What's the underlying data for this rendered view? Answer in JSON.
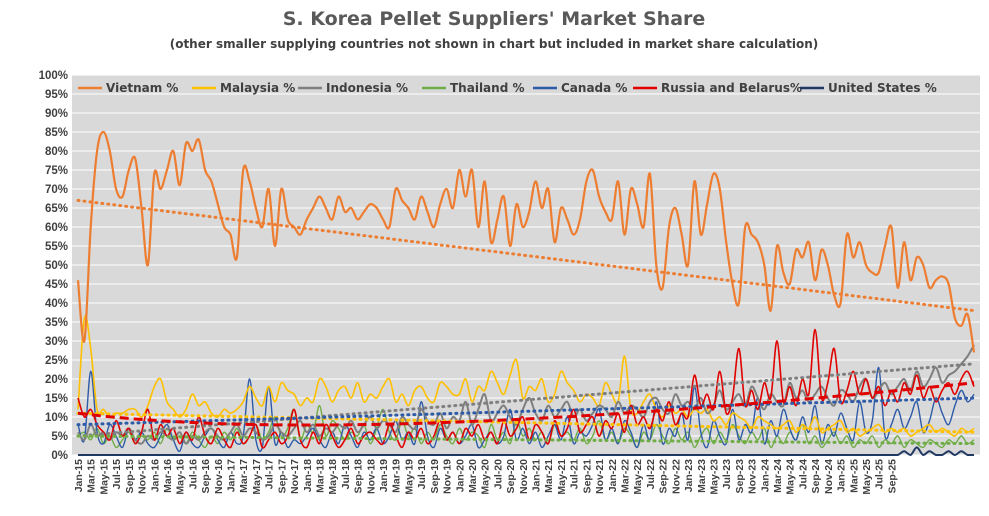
{
  "chart_data": {
    "type": "line",
    "title": "S. Korea Pellet Suppliers' Market Share",
    "subtitle": "(other smaller supplying countries not shown in chart but included in market share calculation)",
    "ylim": [
      0,
      100
    ],
    "y_ticks": [
      "0%",
      "5%",
      "10%",
      "15%",
      "20%",
      "25%",
      "30%",
      "35%",
      "40%",
      "45%",
      "50%",
      "55%",
      "60%",
      "65%",
      "70%",
      "75%",
      "80%",
      "85%",
      "90%",
      "95%",
      "100%"
    ],
    "x_tick_labels": [
      "Jan-15",
      "Mar-15",
      "May-15",
      "Jul-15",
      "Sep-15",
      "Nov-15",
      "Jan-16",
      "Mar-16",
      "May-16",
      "Jul-16",
      "Sep-16",
      "Nov-16",
      "Jan-17",
      "Mar-17",
      "May-17",
      "Jul-17",
      "Sep-17",
      "Nov-17",
      "Jan-18",
      "Mar-18",
      "May-18",
      "Jul-18",
      "Sep-18",
      "Nov-18",
      "Jan-19",
      "Mar-19",
      "May-19",
      "Jul-19",
      "Sep-19",
      "Nov-19",
      "Jan-20",
      "Mar-20",
      "May-20",
      "Jul-20",
      "Sep-20",
      "Nov-20",
      "Jan-21",
      "Mar-21",
      "May-21",
      "Jul-21",
      "Sep-21",
      "Nov-21",
      "Jan-22",
      "Mar-22",
      "May-22",
      "Jul-22",
      "Sep-22",
      "Nov-22",
      "Jan-23",
      "Mar-23",
      "May-23",
      "Jul-23",
      "Sep-23",
      "Nov-23",
      "Jan-24",
      "Mar-24",
      "May-24",
      "Jul-24",
      "Sep-24",
      "Nov-24",
      "Jan-25",
      "Mar-25",
      "May-25",
      "Jul-25",
      "Sep-25"
    ],
    "background": "#d9d9d9",
    "grid": true,
    "legend_position": "top",
    "series": [
      {
        "name": "Vietnam %",
        "color": "#ed7d31",
        "width": 2.2,
        "values": [
          46,
          30,
          60,
          80,
          85,
          80,
          70,
          68,
          75,
          78,
          65,
          50,
          74,
          70,
          75,
          80,
          71,
          82,
          80,
          83,
          75,
          72,
          66,
          60,
          58,
          52,
          75,
          72,
          65,
          60,
          70,
          55,
          70,
          62,
          60,
          58,
          62,
          65,
          68,
          65,
          62,
          68,
          64,
          65,
          62,
          64,
          66,
          65,
          62,
          60,
          70,
          67,
          65,
          62,
          68,
          64,
          60,
          66,
          70,
          65,
          75,
          68,
          75,
          60,
          72,
          56,
          62,
          68,
          55,
          66,
          60,
          64,
          72,
          65,
          70,
          56,
          65,
          62,
          58,
          62,
          72,
          75,
          68,
          64,
          62,
          72,
          58,
          70,
          66,
          60,
          74,
          50,
          44,
          60,
          65,
          58,
          50,
          72,
          58,
          66,
          74,
          70,
          56,
          45,
          40,
          60,
          58,
          56,
          50,
          38,
          55,
          48,
          45,
          54,
          52,
          56,
          46,
          54,
          50,
          42,
          40,
          58,
          52,
          56,
          50,
          48,
          48,
          55,
          60,
          44,
          56,
          46,
          52,
          50,
          44,
          46,
          47,
          45,
          36,
          34,
          37,
          27
        ],
        "trend_start": 67,
        "trend_end": 38
      },
      {
        "name": "Malaysia %",
        "color": "#ffc000",
        "width": 1.6,
        "values": [
          12,
          36,
          28,
          12,
          12,
          10,
          11,
          11,
          12,
          12,
          10,
          13,
          18,
          20,
          14,
          12,
          10,
          12,
          16,
          13,
          14,
          11,
          10,
          12,
          11,
          12,
          14,
          18,
          15,
          13,
          18,
          14,
          19,
          17,
          16,
          13,
          15,
          14,
          20,
          18,
          14,
          17,
          18,
          15,
          19,
          14,
          16,
          15,
          18,
          20,
          14,
          16,
          13,
          17,
          18,
          15,
          14,
          19,
          18,
          16,
          16,
          20,
          14,
          18,
          17,
          22,
          19,
          16,
          21,
          25,
          15,
          18,
          17,
          20,
          14,
          16,
          22,
          19,
          17,
          14,
          16,
          15,
          13,
          19,
          16,
          14,
          26,
          12,
          11,
          14,
          16,
          12,
          10,
          13,
          11,
          12,
          10,
          12,
          11,
          12,
          9,
          10,
          8,
          11,
          10,
          9,
          7,
          10,
          9,
          8,
          7,
          8,
          9,
          6,
          8,
          7,
          10,
          6,
          7,
          8,
          9,
          6,
          7,
          5,
          6,
          7,
          8,
          6,
          7,
          6,
          7,
          5,
          6,
          7,
          8,
          6,
          7,
          6,
          5,
          7,
          6,
          7
        ],
        "trend_start": 11,
        "trend_end": 6
      },
      {
        "name": "Indonesia %",
        "color": "#7f7f7f",
        "width": 2.0,
        "values": [
          6,
          4,
          8,
          5,
          6,
          4,
          6,
          5,
          7,
          4,
          3,
          5,
          4,
          6,
          5,
          4,
          6,
          3,
          5,
          4,
          6,
          7,
          5,
          4,
          6,
          8,
          5,
          7,
          6,
          4,
          5,
          8,
          6,
          5,
          7,
          9,
          6,
          8,
          5,
          7,
          6,
          8,
          7,
          9,
          6,
          8,
          10,
          7,
          9,
          8,
          6,
          10,
          8,
          7,
          12,
          9,
          8,
          11,
          7,
          10,
          9,
          14,
          8,
          12,
          16,
          9,
          11,
          13,
          10,
          8,
          12,
          15,
          11,
          9,
          13,
          10,
          12,
          14,
          10,
          12,
          9,
          11,
          13,
          12,
          10,
          14,
          11,
          13,
          12,
          10,
          14,
          15,
          12,
          11,
          16,
          13,
          14,
          12,
          15,
          11,
          13,
          17,
          12,
          14,
          16,
          13,
          18,
          15,
          12,
          16,
          14,
          13,
          19,
          15,
          17,
          14,
          16,
          18,
          15,
          13,
          17,
          16,
          14,
          18,
          20,
          15,
          17,
          19,
          16,
          18,
          20,
          17,
          22,
          18,
          20,
          23,
          19,
          21,
          22,
          24,
          26,
          29
        ],
        "trend_start": 5,
        "trend_end": 24
      },
      {
        "name": "Thailand %",
        "color": "#70ad47",
        "width": 1.4,
        "values": [
          5,
          6,
          4,
          7,
          3,
          5,
          2,
          4,
          6,
          3,
          5,
          4,
          6,
          3,
          7,
          4,
          5,
          3,
          6,
          4,
          2,
          5,
          3,
          6,
          4,
          7,
          3,
          5,
          8,
          4,
          6,
          10,
          5,
          7,
          12,
          4,
          8,
          6,
          13,
          5,
          9,
          7,
          4,
          6,
          5,
          8,
          3,
          7,
          12,
          6,
          4,
          9,
          5,
          7,
          3,
          6,
          4,
          8,
          5,
          3,
          7,
          4,
          6,
          5,
          2,
          8,
          4,
          6,
          3,
          9,
          5,
          7,
          4,
          6,
          3,
          8,
          5,
          6,
          4,
          7,
          3,
          5,
          9,
          4,
          6,
          3,
          7,
          5,
          2,
          6,
          4,
          8,
          5,
          3,
          7,
          4,
          6,
          2,
          5,
          7,
          3,
          6,
          4,
          8,
          5,
          3,
          6,
          4,
          7,
          2,
          5,
          3,
          6,
          4,
          8,
          3,
          5,
          2,
          4,
          6,
          3,
          5,
          2,
          4,
          3,
          5,
          2,
          4,
          3,
          5,
          2,
          4,
          3,
          2,
          4,
          3,
          2,
          4,
          3,
          5,
          3,
          4
        ],
        "trend_start": 5,
        "trend_end": 3
      },
      {
        "name": "Canada %",
        "color": "#2e5ba8",
        "width": 1.4,
        "values": [
          8,
          4,
          22,
          6,
          3,
          8,
          5,
          2,
          7,
          4,
          6,
          3,
          2,
          5,
          8,
          4,
          1,
          6,
          3,
          2,
          5,
          7,
          4,
          2,
          6,
          3,
          5,
          20,
          4,
          2,
          18,
          3,
          6,
          2,
          4,
          3,
          5,
          7,
          4,
          2,
          6,
          3,
          8,
          5,
          2,
          6,
          4,
          7,
          3,
          5,
          9,
          4,
          6,
          3,
          14,
          5,
          2,
          7,
          4,
          6,
          3,
          5,
          8,
          2,
          4,
          6,
          3,
          5,
          12,
          4,
          7,
          3,
          6,
          2,
          5,
          8,
          4,
          10,
          3,
          6,
          5,
          8,
          12,
          4,
          7,
          3,
          9,
          6,
          2,
          8,
          4,
          14,
          3,
          7,
          5,
          11,
          4,
          18,
          6,
          2,
          9,
          5,
          3,
          12,
          4,
          8,
          6,
          15,
          3,
          9,
          5,
          12,
          7,
          4,
          10,
          6,
          13,
          3,
          8,
          5,
          11,
          7,
          4,
          14,
          6,
          9,
          23,
          5,
          8,
          12,
          7,
          10,
          14,
          6,
          9,
          15,
          11,
          8,
          13,
          17,
          14,
          16
        ],
        "trend_start": 8,
        "trend_end": 15
      },
      {
        "name": "Russia  and Belarus%",
        "color": "#e00000",
        "width": 1.6,
        "values": [
          15,
          10,
          12,
          8,
          6,
          4,
          9,
          5,
          7,
          3,
          6,
          12,
          4,
          8,
          5,
          7,
          3,
          6,
          4,
          10,
          5,
          3,
          7,
          4,
          2,
          6,
          3,
          5,
          8,
          2,
          4,
          6,
          3,
          5,
          12,
          4,
          2,
          6,
          3,
          8,
          5,
          2,
          4,
          7,
          3,
          5,
          6,
          4,
          3,
          8,
          5,
          2,
          6,
          4,
          7,
          3,
          5,
          9,
          4,
          6,
          3,
          7,
          5,
          8,
          4,
          6,
          3,
          9,
          5,
          7,
          10,
          4,
          8,
          6,
          3,
          9,
          5,
          7,
          12,
          6,
          8,
          10,
          5,
          9,
          7,
          11,
          6,
          13,
          8,
          10,
          7,
          12,
          9,
          14,
          8,
          11,
          10,
          21,
          13,
          16,
          12,
          22,
          11,
          15,
          28,
          13,
          17,
          12,
          19,
          15,
          30,
          14,
          18,
          13,
          20,
          16,
          33,
          15,
          19,
          28,
          14,
          17,
          22,
          16,
          20,
          15,
          18,
          13,
          17,
          14,
          19,
          16,
          21,
          15,
          18,
          14,
          17,
          19,
          16,
          20,
          22,
          18
        ],
        "trend_start": 11,
        "trend_end": 19,
        "trend_dip": 3
      },
      {
        "name": "United States %",
        "color": "#1f3864",
        "width": 2.0,
        "values": [
          0,
          0,
          0,
          0,
          0,
          0,
          0,
          0,
          0,
          0,
          0,
          0,
          0,
          0,
          0,
          0,
          0,
          0,
          0,
          0,
          0,
          0,
          0,
          0,
          0,
          0,
          0,
          0,
          0,
          0,
          0,
          0,
          0,
          0,
          0,
          0,
          0,
          0,
          0,
          0,
          0,
          0,
          0,
          0,
          0,
          0,
          0,
          0,
          0,
          0,
          0,
          0,
          0,
          0,
          0,
          0,
          0,
          0,
          0,
          0,
          0,
          0,
          0,
          0,
          0,
          0,
          0,
          0,
          0,
          0,
          0,
          0,
          0,
          0,
          0,
          0,
          0,
          0,
          0,
          0,
          0,
          0,
          0,
          0,
          0,
          0,
          0,
          0,
          0,
          0,
          0,
          0,
          0,
          0,
          0,
          0,
          0,
          0,
          0,
          0,
          0,
          0,
          0,
          0,
          0,
          0,
          0,
          0,
          0,
          0,
          0,
          0,
          0,
          0,
          0,
          0,
          0,
          0,
          0,
          0,
          0,
          0,
          0,
          0,
          0,
          0,
          0,
          0,
          0,
          0,
          1,
          0,
          2,
          0,
          1,
          0,
          0,
          1,
          0,
          1,
          0,
          0
        ]
      }
    ]
  }
}
